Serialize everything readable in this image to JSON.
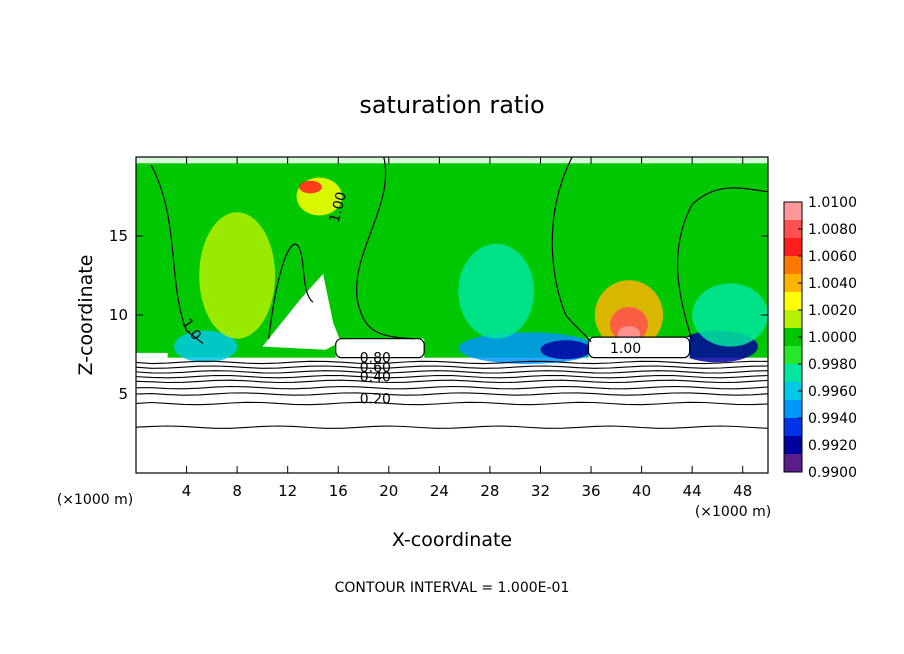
{
  "chart_data": {
    "type": "heatmap",
    "title": "saturation ratio",
    "xlabel": "X-coordinate",
    "ylabel": "Z-coordinate",
    "x_unit_left": "(×1000 m)",
    "x_unit_right": "(×1000 m)",
    "footer": "CONTOUR INTERVAL = 1.000E-01",
    "xlim": [
      0,
      50
    ],
    "ylim": [
      0,
      20
    ],
    "x_ticks": [
      {
        "value": 4,
        "label": "4"
      },
      {
        "value": 8,
        "label": "8"
      },
      {
        "value": 12,
        "label": "12"
      },
      {
        "value": 16,
        "label": "16"
      },
      {
        "value": 20,
        "label": "20"
      },
      {
        "value": 24,
        "label": "24"
      },
      {
        "value": 28,
        "label": "28"
      },
      {
        "value": 32,
        "label": "32"
      },
      {
        "value": 36,
        "label": "36"
      },
      {
        "value": 40,
        "label": "40"
      },
      {
        "value": 44,
        "label": "44"
      },
      {
        "value": 48,
        "label": "48"
      }
    ],
    "y_ticks": [
      {
        "value": 5,
        "label": "5"
      },
      {
        "value": 10,
        "label": "10"
      },
      {
        "value": 15,
        "label": "15"
      }
    ],
    "colorbar": {
      "min": 0.99,
      "max": 1.01,
      "labels": [
        "1.0100",
        "1.0080",
        "1.0060",
        "1.0040",
        "1.0020",
        "1.0000",
        "0.9980",
        "0.9960",
        "0.9940",
        "0.9920",
        "0.9900"
      ],
      "colors": [
        "#ff9999",
        "#ff5050",
        "#ff1e1e",
        "#ff7800",
        "#ffb400",
        "#ffff00",
        "#b4f000",
        "#00c800",
        "#28e628",
        "#00e6a0",
        "#00c8e6",
        "#0096ff",
        "#0032e6",
        "#0000a0",
        "#5a1e8c"
      ]
    },
    "contour_labels": [
      {
        "text": "1.00",
        "x": 16.0,
        "y": 15.8,
        "angle": -75
      },
      {
        "text": "1.0",
        "x": 3.6,
        "y": 9.5,
        "angle": 55
      },
      {
        "text": "1.00",
        "x": 37.5,
        "y": 7.6,
        "angle": 0
      },
      {
        "text": "0.80",
        "x": 17.7,
        "y": 7.0,
        "angle": 0
      },
      {
        "text": "0.60",
        "x": 17.7,
        "y": 6.4,
        "angle": 0
      },
      {
        "text": "0.40",
        "x": 17.7,
        "y": 5.8,
        "angle": 0
      },
      {
        "text": "0.20",
        "x": 17.7,
        "y": 4.4,
        "angle": 0
      }
    ],
    "background_value": 1.0,
    "blobs": [
      {
        "x": 39,
        "y": 10.0,
        "rx": 2.7,
        "ry": 2.2,
        "v": 1.0045
      },
      {
        "x": 39,
        "y": 9.4,
        "rx": 1.5,
        "ry": 1.1,
        "v": 1.0075
      },
      {
        "x": 39,
        "y": 8.8,
        "rx": 0.9,
        "ry": 0.5,
        "v": 1.0095
      },
      {
        "x": 46,
        "y": 8.0,
        "rx": 3.2,
        "ry": 1.0,
        "v": 0.9925
      },
      {
        "x": 31,
        "y": 7.9,
        "rx": 5.5,
        "ry": 1.0,
        "v": 0.9945
      },
      {
        "x": 34,
        "y": 7.8,
        "rx": 2.0,
        "ry": 0.6,
        "v": 0.992
      },
      {
        "x": 28.5,
        "y": 11.5,
        "rx": 3.0,
        "ry": 3.0,
        "v": 0.998
      },
      {
        "x": 5.5,
        "y": 8.0,
        "rx": 2.5,
        "ry": 1.0,
        "v": 0.9955
      },
      {
        "x": 14.5,
        "y": 17.5,
        "rx": 1.8,
        "ry": 1.2,
        "v": 1.003
      },
      {
        "x": 13.8,
        "y": 18.1,
        "rx": 0.9,
        "ry": 0.4,
        "v": 1.0065
      },
      {
        "x": 8,
        "y": 12.5,
        "rx": 3.0,
        "ry": 4.0,
        "v": 1.001
      },
      {
        "x": 47,
        "y": 10.0,
        "rx": 3.0,
        "ry": 2.0,
        "v": 0.997
      }
    ],
    "level_lines": [
      {
        "value": "0.90",
        "y": 7.0
      },
      {
        "value": "0.80",
        "y": 6.7
      },
      {
        "value": "0.70",
        "y": 6.4
      },
      {
        "value": "0.60",
        "y": 6.1
      },
      {
        "value": "0.50",
        "y": 5.8
      },
      {
        "value": "0.40",
        "y": 5.4
      },
      {
        "value": "0.30",
        "y": 5.0
      },
      {
        "value": "0.20",
        "y": 4.4
      },
      {
        "value": "0.10",
        "y": 2.9
      }
    ]
  }
}
